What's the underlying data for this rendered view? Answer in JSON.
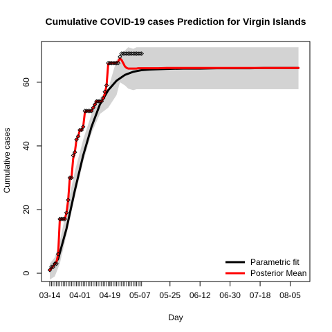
{
  "chart_data": {
    "type": "line",
    "title": "Cumulative COVID-19 cases Prediction for Virgin Islands",
    "xlabel": "Day",
    "ylabel": "Cumulative cases",
    "x_tick_labels": [
      "03-14",
      "04-01",
      "04-19",
      "05-07",
      "05-25",
      "06-12",
      "06-30",
      "07-18",
      "08-05"
    ],
    "y_ticks": [
      0,
      20,
      40,
      60
    ],
    "xlim_days": [
      0,
      150
    ],
    "ylim": [
      -2.6,
      72.8
    ],
    "observed_days": 56,
    "observed_points": {
      "day": [
        0,
        1,
        2,
        3,
        4,
        5,
        6,
        7,
        8,
        9,
        10,
        11,
        12,
        13,
        14,
        15,
        16,
        17,
        18,
        19,
        20,
        21,
        22,
        23,
        24,
        25,
        26,
        27,
        28,
        29,
        30,
        31,
        32,
        33,
        34,
        35,
        36,
        37,
        38,
        39,
        40,
        41,
        42,
        43,
        44,
        45,
        46,
        47,
        48,
        49,
        50,
        51,
        52,
        53,
        54,
        55
      ],
      "cases": [
        1,
        2,
        2,
        3,
        3,
        6,
        17,
        17,
        17,
        17,
        19,
        23,
        30,
        30,
        37,
        38,
        42,
        43,
        45,
        45,
        46,
        51,
        51,
        51,
        51,
        51,
        52,
        53,
        54,
        54,
        54,
        54,
        55,
        57,
        59,
        66,
        66,
        66,
        66,
        66,
        66,
        66,
        68,
        69,
        69,
        69,
        69,
        69,
        69,
        69,
        69,
        69,
        69,
        69,
        69,
        69
      ]
    },
    "series": [
      {
        "name": "Parametric fit",
        "color": "#000000",
        "day": [
          0,
          5,
          10,
          15,
          20,
          25,
          30,
          35,
          40,
          45,
          50,
          55,
          60,
          70,
          80,
          90,
          100,
          110,
          120,
          130,
          140,
          149
        ],
        "values": [
          0.8,
          4.5,
          14,
          26,
          37,
          46,
          53,
          57.5,
          60.5,
          62.3,
          63.3,
          63.8,
          64.0,
          64.2,
          64.3,
          64.3,
          64.4,
          64.4,
          64.4,
          64.5,
          64.5,
          64.5
        ]
      },
      {
        "name": "Posterior Mean",
        "color": "#ff0000",
        "day": [
          0,
          1,
          2,
          3,
          4,
          5,
          6,
          7,
          8,
          9,
          10,
          11,
          12,
          13,
          14,
          15,
          16,
          17,
          18,
          19,
          20,
          21,
          22,
          23,
          24,
          25,
          26,
          27,
          28,
          29,
          30,
          31,
          32,
          33,
          34,
          35,
          36,
          37,
          38,
          39,
          40,
          41,
          42,
          43,
          44,
          45,
          46,
          47,
          48,
          49,
          50,
          51,
          52,
          53,
          54,
          55,
          56,
          58,
          60,
          65,
          70,
          80,
          90,
          100,
          110,
          120,
          130,
          140,
          149
        ],
        "values": [
          1,
          1.6,
          2.2,
          2.8,
          3.5,
          6,
          17,
          17,
          17,
          17,
          19,
          23,
          30,
          30,
          36,
          38,
          42,
          43,
          45,
          45,
          46,
          50.5,
          51,
          51,
          51,
          51,
          52,
          53,
          54,
          54,
          54,
          54,
          55,
          56.5,
          59,
          65.8,
          66,
          66,
          66,
          66,
          66.2,
          66.5,
          67.5,
          67,
          66,
          65,
          64.5,
          64.3,
          64.3,
          64.3,
          64.3,
          64.3,
          64.3,
          64.4,
          64.4,
          64.4,
          64.4,
          64.4,
          64.4,
          64.4,
          64.5,
          64.5,
          64.5,
          64.5,
          64.5,
          64.5,
          64.5,
          64.5,
          64.5
        ]
      }
    ],
    "band": {
      "day": [
        0,
        3,
        6,
        10,
        15,
        20,
        25,
        30,
        35,
        40,
        42,
        45,
        47,
        50,
        52,
        60,
        80,
        100,
        120,
        140,
        149
      ],
      "lower": [
        -2,
        -1,
        3,
        12,
        24,
        35,
        44,
        50,
        52,
        56,
        60,
        59,
        58,
        57.5,
        57.8,
        57.8,
        57.8,
        57.8,
        57.8,
        57.8,
        57.8
      ],
      "upper": [
        3,
        5,
        10,
        20,
        32,
        42,
        50,
        55,
        58,
        67,
        68.5,
        70,
        71,
        70.5,
        71,
        71,
        71,
        71,
        71,
        71,
        71
      ],
      "color": "#d3d3d3"
    },
    "legend": {
      "position": "bottom-right",
      "entries": [
        "Parametric fit",
        "Posterior Mean"
      ]
    },
    "grid": false
  }
}
